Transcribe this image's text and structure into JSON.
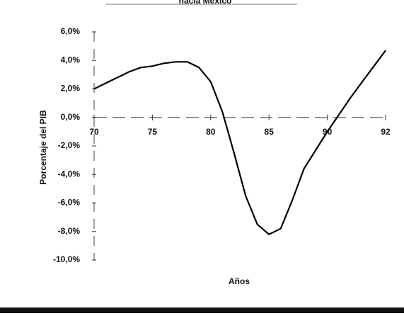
{
  "chart_data": {
    "type": "line",
    "title": "hacia México",
    "x_label": "Años",
    "y_label": "Porcentaje del PIB",
    "categories": [
      "70",
      null,
      null,
      null,
      null,
      "75",
      null,
      null,
      null,
      null,
      "80",
      null,
      null,
      null,
      null,
      "85",
      null,
      null,
      null,
      null,
      "90",
      null,
      null,
      null,
      null,
      "92"
    ],
    "series": [
      {
        "name": null,
        "color": "#000000",
        "values": [
          2.0,
          2.4,
          2.8,
          3.2,
          3.5,
          3.6,
          3.8,
          3.9,
          3.9,
          3.5,
          2.5,
          0.4,
          -2.5,
          -5.5,
          -7.5,
          -8.2,
          -7.8,
          -5.8,
          -3.6,
          -2.3,
          -1.0,
          0.2,
          1.4,
          2.5,
          3.6,
          4.7
        ]
      }
    ],
    "ylim": [
      -10,
      6
    ],
    "yticks": [
      {
        "value": -10,
        "label": "-10,0%"
      },
      {
        "value": -8,
        "label": "-8,0%"
      },
      {
        "value": -6,
        "label": "-6,0%"
      },
      {
        "value": -4,
        "label": "-4,0%"
      },
      {
        "value": -2,
        "label": "-2,0%"
      },
      {
        "value": 0,
        "label": "0,0%"
      },
      {
        "value": 2,
        "label": "2,0%"
      },
      {
        "value": 4,
        "label": "4,0%"
      },
      {
        "value": 6,
        "label": "6,0%"
      }
    ],
    "grid": false
  }
}
